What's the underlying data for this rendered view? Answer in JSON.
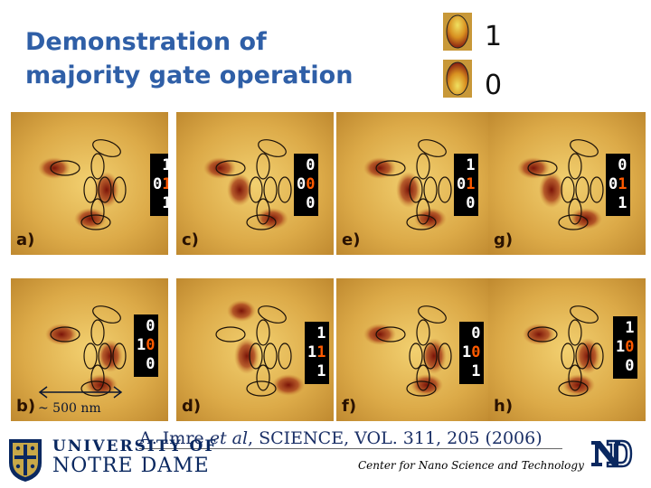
{
  "title_line1": "Demonstration of",
  "title_line2": "majority gate operation",
  "legend": {
    "one": "1",
    "zero": "0"
  },
  "panels": [
    {
      "label": "a)",
      "bits": [
        "1",
        "01",
        "1"
      ]
    },
    {
      "label": "c)",
      "bits": [
        "0",
        "00",
        "0"
      ]
    },
    {
      "label": "e)",
      "bits": [
        "1",
        "01",
        "0"
      ]
    },
    {
      "label": "g)",
      "bits": [
        "0",
        "01",
        "1"
      ]
    },
    {
      "label": "b)",
      "bits": [
        "0",
        "10",
        "0"
      ]
    },
    {
      "label": "d)",
      "bits": [
        "1",
        "11",
        "1"
      ]
    },
    {
      "label": "f)",
      "bits": [
        "0",
        "10",
        "1"
      ]
    },
    {
      "label": "h)",
      "bits": [
        "1",
        "10",
        "0"
      ]
    }
  ],
  "scale_label": "~ 500 nm",
  "citation": {
    "author": "A. Imre",
    "etal": "et al",
    "rest": ", SCIENCE, VOL. 311, 205 (2006)"
  },
  "university_line1": "UNIVERSITY OF",
  "university_line2": "NOTRE DAME",
  "center_name": "Center for Nano Science and Technology",
  "colors": {
    "title": "#2f5fa7",
    "panel_bg": "#d8a640",
    "spot_dark": "#8a1e10",
    "bit_highlight": "#ff5a00"
  },
  "icons": {
    "logo": "notre-dame-shield-icon",
    "monogram": "nd-monogram-icon"
  }
}
